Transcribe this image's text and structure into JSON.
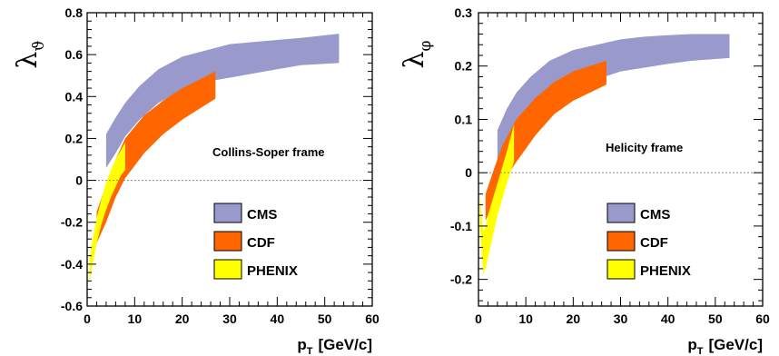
{
  "chart_data": [
    {
      "type": "area",
      "ylabel": "λ",
      "ylabel_sub": "ϑ",
      "xlabel": "p",
      "xlabel_sub": "T",
      "xlabel_unit": "[GeV/c]",
      "xlim": [
        0,
        60
      ],
      "ylim": [
        -0.6,
        0.8
      ],
      "xticks": [
        0,
        10,
        20,
        30,
        40,
        50,
        60
      ],
      "xtick_labels": [
        "0",
        "10",
        "20",
        "30",
        "40",
        "50",
        "60"
      ],
      "yticks": [
        -0.6,
        -0.4,
        -0.2,
        0,
        0.2,
        0.4,
        0.6,
        0.8
      ],
      "ytick_labels": [
        "-0.6",
        "-0.4",
        "-0.2",
        "0",
        "0.2",
        "0.4",
        "0.6",
        "0.8"
      ],
      "annotation": "Collins-Soper frame",
      "zero_line": true,
      "legend_position": "bottom-right",
      "legend": [
        "CMS",
        "CDF",
        "PHENIX"
      ],
      "series": [
        {
          "name": "CMS",
          "color": "#9999cc",
          "x": [
            4,
            6,
            8,
            11,
            15,
            20,
            25,
            30,
            35,
            40,
            45,
            53
          ],
          "upper": [
            0.22,
            0.3,
            0.37,
            0.45,
            0.53,
            0.59,
            0.62,
            0.65,
            0.66,
            0.67,
            0.68,
            0.7
          ],
          "lower": [
            0.06,
            0.13,
            0.21,
            0.29,
            0.37,
            0.43,
            0.47,
            0.49,
            0.51,
            0.53,
            0.55,
            0.56
          ]
        },
        {
          "name": "CDF",
          "color": "#ff6600",
          "x": [
            2,
            4,
            6,
            8,
            12,
            16,
            20,
            27
          ],
          "upper": [
            -0.15,
            -0.02,
            0.1,
            0.2,
            0.31,
            0.38,
            0.44,
            0.52
          ],
          "lower": [
            -0.3,
            -0.2,
            -0.08,
            0.01,
            0.13,
            0.22,
            0.29,
            0.39
          ]
        },
        {
          "name": "PHENIX",
          "color": "#ffff00",
          "x": [
            0.5,
            1,
            2,
            3,
            4,
            5,
            6,
            7,
            8
          ],
          "upper": [
            -0.37,
            -0.3,
            -0.18,
            -0.09,
            -0.01,
            0.05,
            0.1,
            0.14,
            0.18
          ],
          "lower": [
            -0.49,
            -0.42,
            -0.3,
            -0.21,
            -0.14,
            -0.08,
            -0.03,
            0.02,
            0.05
          ]
        }
      ]
    },
    {
      "type": "area",
      "ylabel": "λ",
      "ylabel_sub": "φ",
      "xlabel": "p",
      "xlabel_sub": "T",
      "xlabel_unit": "[GeV/c]",
      "xlim": [
        0,
        60
      ],
      "ylim": [
        -0.25,
        0.3
      ],
      "xticks": [
        0,
        10,
        20,
        30,
        40,
        50,
        60
      ],
      "xtick_labels": [
        "0",
        "10",
        "20",
        "30",
        "40",
        "50",
        "60"
      ],
      "yticks": [
        -0.2,
        -0.1,
        0,
        0.1,
        0.2,
        0.3
      ],
      "ytick_labels": [
        "-0.2",
        "-0.1",
        "0",
        "0.1",
        "0.2",
        "0.3"
      ],
      "annotation": "Helicity frame",
      "zero_line": true,
      "legend_position": "bottom-right",
      "legend": [
        "CMS",
        "CDF",
        "PHENIX"
      ],
      "series": [
        {
          "name": "CMS",
          "color": "#9999cc",
          "x": [
            4,
            6,
            8,
            11,
            15,
            20,
            25,
            30,
            35,
            40,
            45,
            53
          ],
          "upper": [
            0.08,
            0.12,
            0.15,
            0.18,
            0.21,
            0.23,
            0.24,
            0.25,
            0.255,
            0.258,
            0.26,
            0.26
          ],
          "lower": [
            -0.01,
            0.03,
            0.07,
            0.11,
            0.14,
            0.16,
            0.175,
            0.19,
            0.197,
            0.204,
            0.21,
            0.215
          ]
        },
        {
          "name": "CDF",
          "color": "#ff6600",
          "x": [
            1.5,
            3,
            5,
            8,
            12,
            16,
            20,
            27
          ],
          "upper": [
            -0.04,
            0.0,
            0.05,
            0.1,
            0.14,
            0.17,
            0.19,
            0.21
          ],
          "lower": [
            -0.09,
            -0.06,
            -0.02,
            0.02,
            0.07,
            0.11,
            0.135,
            0.165
          ]
        },
        {
          "name": "PHENIX",
          "color": "#ffff00",
          "x": [
            0.3,
            1,
            1.5,
            2,
            3,
            4,
            5,
            6,
            7.5
          ],
          "upper": [
            -0.04,
            -0.11,
            -0.1,
            -0.08,
            -0.05,
            -0.02,
            0.01,
            0.04,
            0.09
          ],
          "lower": [
            -0.1,
            -0.19,
            -0.18,
            -0.16,
            -0.12,
            -0.08,
            -0.05,
            -0.02,
            0.02
          ]
        }
      ]
    }
  ]
}
